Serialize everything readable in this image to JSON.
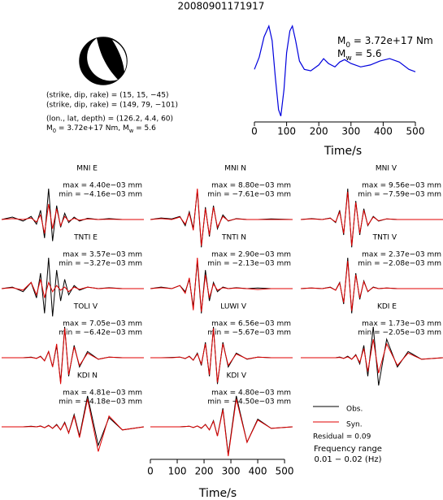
{
  "title": "20080901171917",
  "mechanism": {
    "lines": [
      "(strike, dip, rake) = (15, 15, −45)",
      "(strike, dip, rake) = (149, 79, −101)",
      "(lon., lat, depth) = (126.2, 4.4, 60)"
    ],
    "moment": [
      "M",
      "0",
      " = 3.72e+17 Nm, M",
      "w",
      " = 5.6"
    ]
  },
  "chart_data": [
    {
      "type": "line",
      "x_label": "Time/s",
      "annotation_lines": [
        [
          "M",
          "0",
          " = 3.72e+17 Nm"
        ],
        [
          "M",
          "w",
          " = 5.6"
        ]
      ],
      "x": [
        0,
        15,
        30,
        45,
        55,
        65,
        75,
        82,
        92,
        100,
        110,
        118,
        128,
        140,
        155,
        175,
        200,
        215,
        230,
        250,
        265,
        280,
        300,
        330,
        360,
        390,
        420,
        450,
        480,
        500
      ],
      "values": [
        0.08,
        0.33,
        0.75,
        0.97,
        0.67,
        -0.08,
        -0.75,
        -0.88,
        -0.33,
        0.42,
        0.87,
        0.97,
        0.67,
        0.25,
        0.08,
        0.05,
        0.17,
        0.3,
        0.2,
        0.13,
        0.23,
        0.28,
        0.2,
        0.13,
        0.17,
        0.25,
        0.3,
        0.23,
        0.08,
        0.03
      ],
      "color": "#0000dd",
      "xlim": [
        0,
        500
      ],
      "xticks": [
        0,
        100,
        200,
        300,
        400,
        500
      ],
      "ylim": [
        -1,
        1.17
      ]
    },
    {
      "type": "waveforms",
      "x_label": "Time/s",
      "xlim": [
        0,
        530
      ],
      "xticks": [
        0,
        100,
        200,
        300,
        400,
        500
      ],
      "ylim": [
        -1,
        1
      ],
      "legend": [
        {
          "name": "Obs.",
          "color": "#000000"
        },
        {
          "name": "Syn.",
          "color": "#e00000"
        }
      ],
      "residual": "Residual = 0.09",
      "frequency": [
        "Frequency range",
        "0.01 − 0.02 (Hz)"
      ],
      "time": [
        0,
        40,
        80,
        110,
        130,
        145,
        160,
        175,
        190,
        205,
        220,
        235,
        250,
        270,
        290,
        320,
        360,
        400,
        450,
        530
      ],
      "panels": [
        {
          "station": "MNI E",
          "max": "max = 4.40e−03 mm",
          "min": "min = −4.16e−03 mm",
          "obs": [
            0,
            0.08,
            -0.05,
            0.1,
            -0.15,
            0.3,
            -0.6,
            1,
            -0.7,
            0.45,
            -0.25,
            0.2,
            -0.1,
            0.08,
            -0.05,
            0.04,
            0,
            0.03,
            0,
            0
          ],
          "syn": [
            0,
            0.03,
            0,
            0.05,
            -0.08,
            0.15,
            -0.45,
            0.5,
            -0.3,
            0.35,
            -0.2,
            0.1,
            -0.05,
            0.04,
            -0.02,
            0.02,
            0,
            0.01,
            0,
            0
          ]
        },
        {
          "station": "MNI N",
          "max": "max = 8.80e−03 mm",
          "min": "min = −7.61e−03 mm",
          "obs": [
            0,
            0.05,
            0.02,
            0.1,
            -0.2,
            0.25,
            -0.3,
            0.95,
            -0.9,
            0.4,
            -0.55,
            0.45,
            -0.3,
            0.15,
            -0.05,
            0.03,
            0,
            0,
            0.02,
            0
          ],
          "syn": [
            0,
            0.03,
            0,
            0.08,
            -0.15,
            0.2,
            -0.35,
            1,
            -0.85,
            0.35,
            -0.5,
            0.4,
            -0.25,
            0.1,
            -0.04,
            0.02,
            0,
            0,
            0,
            0
          ]
        },
        {
          "station": "MNI V",
          "max": "max = 9.56e−03 mm",
          "min": "min = −7.59e−03 mm",
          "obs": [
            0,
            0.03,
            0,
            0.05,
            -0.1,
            0.3,
            -0.5,
            1,
            -0.9,
            0.6,
            -0.5,
            0.35,
            -0.2,
            0.1,
            -0.05,
            0.02,
            0,
            0,
            0,
            0
          ],
          "syn": [
            0,
            0.02,
            0,
            0.04,
            -0.08,
            0.25,
            -0.45,
            0.9,
            -0.85,
            0.55,
            -0.45,
            0.3,
            -0.18,
            0.08,
            -0.04,
            0.02,
            0,
            0,
            0,
            0
          ]
        },
        {
          "station": "TNTI E",
          "max": "max = 3.57e−03 mm",
          "min": "min = −3.27e−03 mm",
          "obs": [
            0,
            0.05,
            -0.1,
            0.2,
            -0.3,
            0.5,
            -0.8,
            1,
            -0.9,
            0.6,
            -0.4,
            0.3,
            -0.2,
            0.1,
            -0.05,
            0.05,
            0,
            0.03,
            0,
            0
          ],
          "syn": [
            0,
            0.03,
            -0.05,
            0.2,
            -0.2,
            0.3,
            -0.3,
            0.2,
            -0.1,
            0.1,
            -0.05,
            0.05,
            -0.1,
            0.05,
            -0.02,
            0.05,
            0,
            0.02,
            0,
            0
          ]
        },
        {
          "station": "TNTI N",
          "max": "max = 2.90e−03 mm",
          "min": "min = −2.13e−03 mm",
          "obs": [
            0,
            0.05,
            0,
            0.1,
            -0.1,
            0.3,
            -0.6,
            0.9,
            -0.8,
            0.6,
            -0.4,
            0.2,
            -0.1,
            0.05,
            0,
            0.03,
            0,
            0.02,
            0,
            0
          ],
          "syn": [
            0,
            0.03,
            0,
            0.1,
            -0.15,
            0.35,
            -0.7,
            1,
            -0.75,
            0.45,
            -0.3,
            0.15,
            -0.05,
            0.03,
            0,
            0.02,
            0,
            -0.03,
            0,
            0
          ]
        },
        {
          "station": "TNTI V",
          "max": "max = 2.37e−03 mm",
          "min": "min = −2.08e−03 mm",
          "obs": [
            0,
            0.02,
            0,
            0.05,
            -0.05,
            0.2,
            -0.5,
            1,
            -0.8,
            0.5,
            -0.35,
            0.25,
            -0.1,
            0.05,
            0,
            0.02,
            0,
            0,
            0,
            0
          ],
          "syn": [
            0,
            0.02,
            0,
            0.04,
            -0.05,
            0.18,
            -0.45,
            0.9,
            -0.72,
            0.45,
            -0.3,
            0.22,
            -0.09,
            0.04,
            0,
            0.02,
            0,
            0,
            0,
            0
          ]
        },
        {
          "station": "TOLI V",
          "max": "max = 7.05e−03 mm",
          "min": "min = −6.42e−03 mm",
          "obs": [
            0,
            0,
            0,
            0.02,
            -0.02,
            0.05,
            -0.1,
            0.2,
            -0.3,
            0.4,
            -0.8,
            1,
            -0.6,
            0.4,
            -0.3,
            0.2,
            -0.05,
            0.02,
            0,
            0
          ],
          "syn": [
            0,
            0,
            0,
            0.01,
            -0.02,
            0.04,
            -0.1,
            0.2,
            -0.3,
            0.45,
            -0.85,
            0.95,
            -0.55,
            0.35,
            -0.25,
            0.15,
            -0.05,
            0.02,
            0,
            0
          ]
        },
        {
          "station": "LUWI V",
          "max": "max = 6.56e−03 mm",
          "min": "min = −5.67e−03 mm",
          "obs": [
            0,
            0,
            0.01,
            0.02,
            -0.03,
            0.05,
            -0.08,
            0.15,
            -0.25,
            0.5,
            -0.6,
            1,
            -0.85,
            0.5,
            -0.3,
            0.15,
            -0.05,
            0.02,
            0,
            0
          ],
          "syn": [
            0,
            0,
            0,
            0.02,
            -0.02,
            0.04,
            -0.08,
            0.12,
            -0.2,
            0.45,
            -0.55,
            0.95,
            -0.8,
            0.45,
            -0.25,
            0.12,
            -0.04,
            0.02,
            0,
            0
          ]
        },
        {
          "station": "KDI E",
          "max": "max = 1.73e−03 mm",
          "min": "min = −2.05e−03 mm",
          "obs": [
            0,
            0,
            0,
            0,
            0,
            0.02,
            -0.02,
            0.05,
            -0.05,
            0.1,
            -0.2,
            0.4,
            -0.6,
            1,
            -0.9,
            0.6,
            -0.3,
            0.2,
            -0.05,
            0
          ],
          "syn": [
            0,
            0,
            0,
            0,
            0,
            0.01,
            -0.02,
            0.03,
            -0.05,
            0.08,
            -0.15,
            0.3,
            -0.45,
            0.6,
            -0.5,
            0.45,
            -0.25,
            0.15,
            -0.05,
            0
          ]
        },
        {
          "station": "KDI N",
          "max": "max = 4.81e−03 mm",
          "min": "min = −4.18e−03 mm",
          "obs": [
            0,
            0,
            0,
            0.02,
            0,
            0.03,
            -0.03,
            0.05,
            -0.05,
            0.08,
            -0.1,
            0.15,
            -0.2,
            0.4,
            -0.3,
            1,
            -0.6,
            0.3,
            -0.1,
            0
          ],
          "syn": [
            0,
            0,
            0,
            0.01,
            0,
            0.02,
            -0.03,
            0.04,
            -0.05,
            0.06,
            -0.1,
            0.12,
            -0.2,
            0.35,
            -0.35,
            0.9,
            -0.8,
            0.35,
            -0.1,
            0
          ]
        },
        {
          "station": "KDI V",
          "max": "max = 4.80e−03 mm",
          "min": "min = −4.50e−03 mm",
          "obs": [
            0,
            0,
            0,
            0,
            0.01,
            0.02,
            -0.02,
            0.03,
            -0.05,
            0.08,
            -0.1,
            0.2,
            -0.3,
            0.6,
            -0.9,
            1,
            -0.5,
            0.25,
            -0.05,
            0
          ],
          "syn": [
            0,
            0,
            0,
            0,
            0.01,
            0.02,
            -0.02,
            0.03,
            -0.04,
            0.07,
            -0.1,
            0.18,
            -0.3,
            0.55,
            -0.95,
            0.9,
            -0.5,
            0.22,
            -0.05,
            0
          ]
        }
      ]
    }
  ]
}
